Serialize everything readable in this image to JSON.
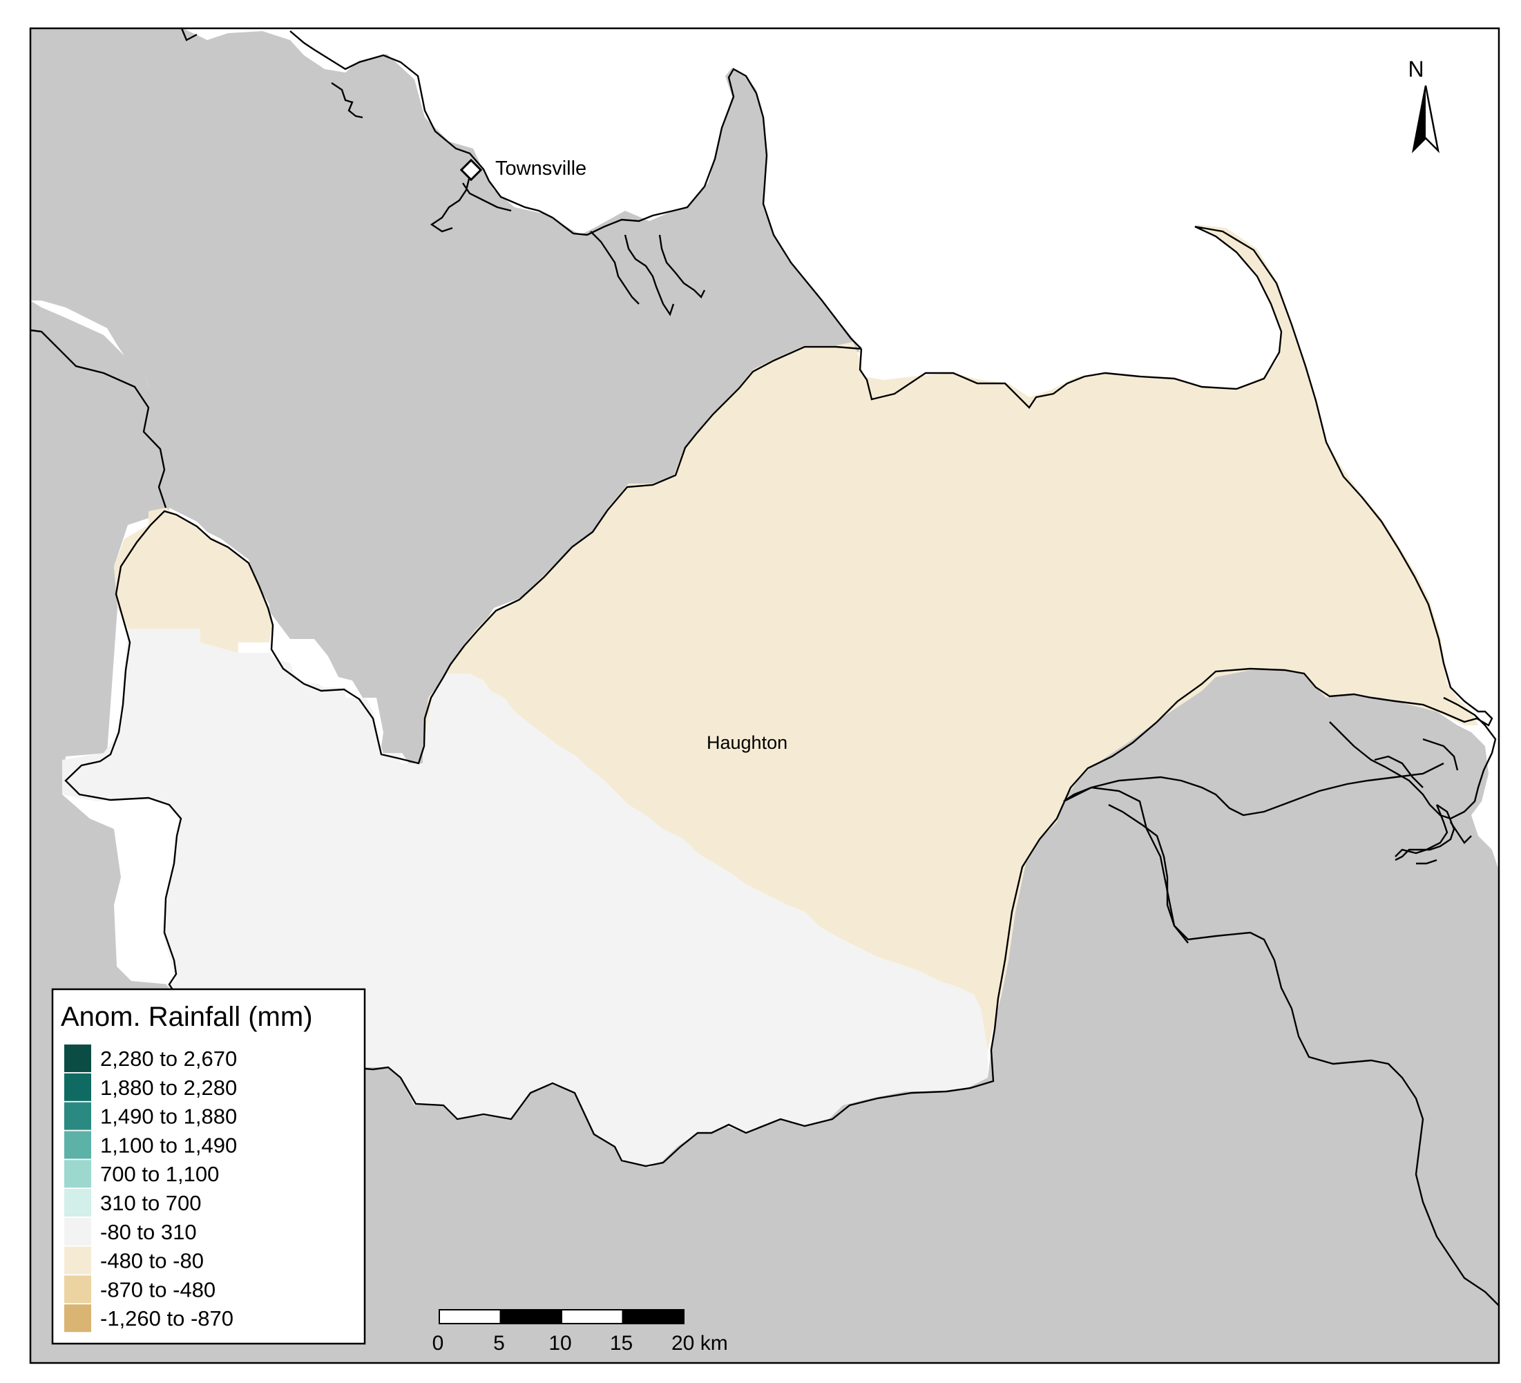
{
  "map": {
    "places": [
      {
        "name": "Townsville"
      },
      {
        "name": "Haughton"
      }
    ],
    "north_arrow": {
      "label": "N"
    },
    "colors": {
      "land": "#c8c8c8",
      "sea": "#ffffff",
      "outline": "#000000"
    }
  },
  "legend": {
    "title": "Anom. Rainfall (mm)",
    "items": [
      {
        "label": "2,280 to 2,670",
        "color": "#0b4d45"
      },
      {
        "label": "1,880 to 2,280",
        "color": "#0f6b61"
      },
      {
        "label": "1,490 to 1,880",
        "color": "#2a8a81"
      },
      {
        "label": "1,100 to 1,490",
        "color": "#5db2a8"
      },
      {
        "label": "700 to 1,100",
        "color": "#9dd8cf"
      },
      {
        "label": "310 to 700",
        "color": "#d2efea"
      },
      {
        "label": "-80 to 310",
        "color": "#f3f3f3"
      },
      {
        "label": "-480 to -80",
        "color": "#f5ebd4"
      },
      {
        "label": "-870 to -480",
        "color": "#ebd3a2"
      },
      {
        "label": "-1,260 to -870",
        "color": "#d9b472"
      }
    ]
  },
  "scale_bar": {
    "ticks": [
      "0",
      "5",
      "10",
      "15",
      "20 km"
    ]
  }
}
